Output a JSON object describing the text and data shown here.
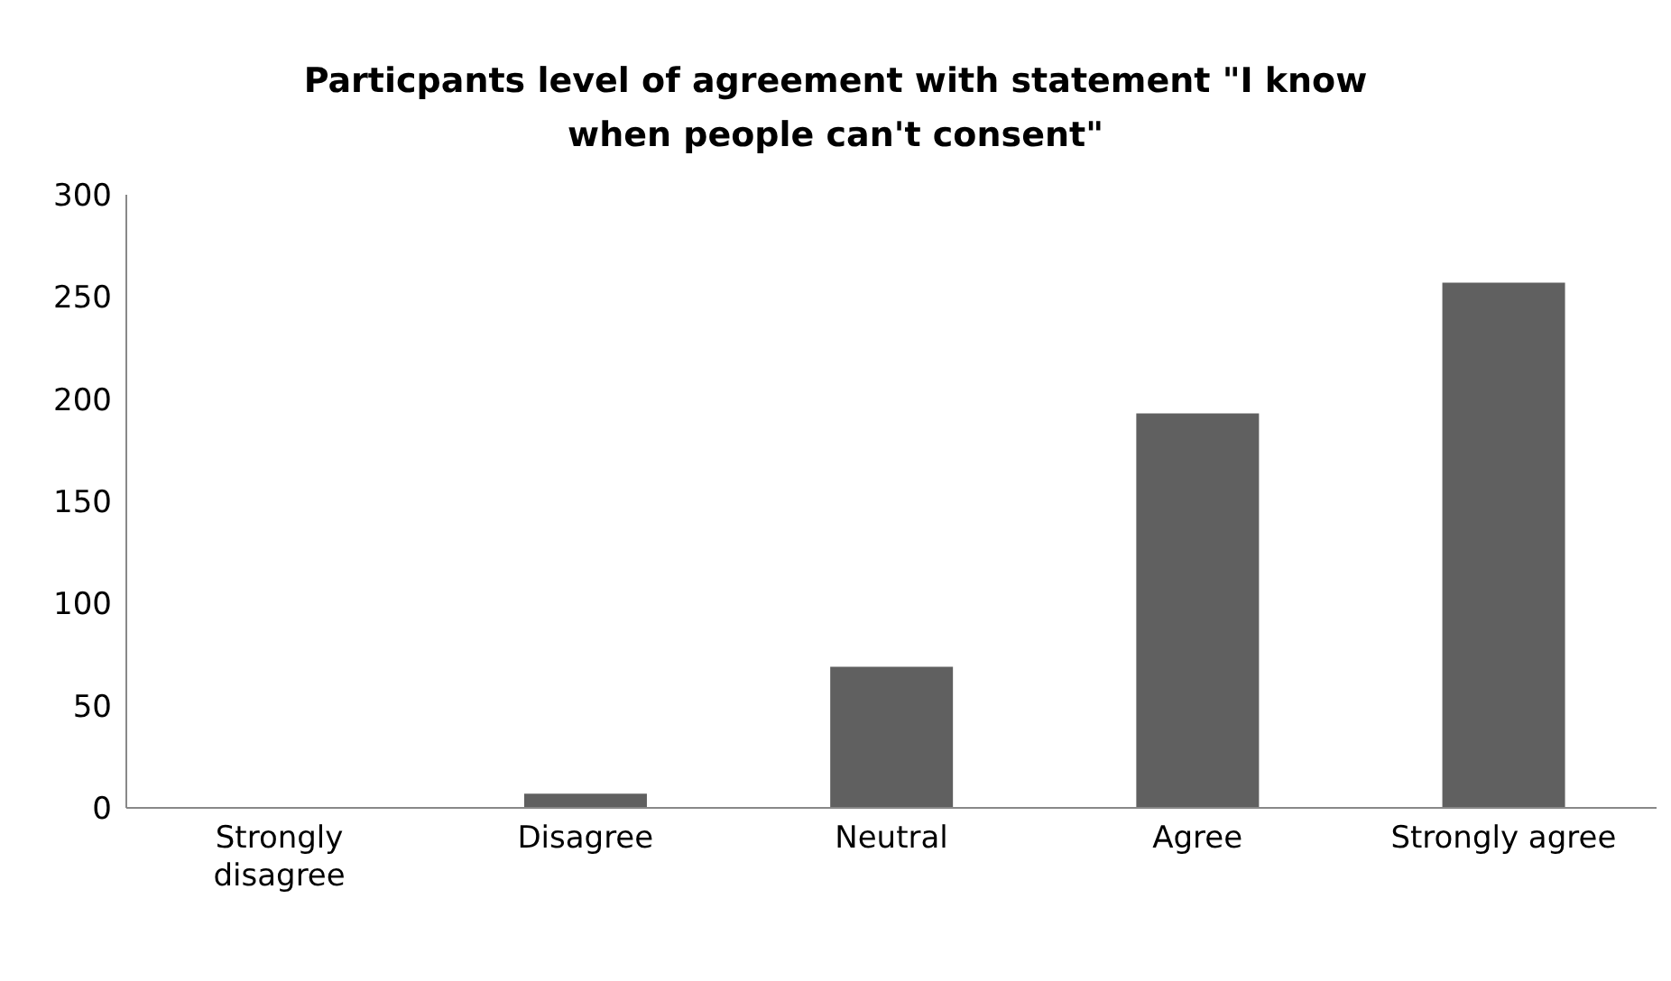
{
  "chart_data": {
    "type": "bar",
    "title": "Particpants level of agreement with statement \"I know when people can't consent\"",
    "categories": [
      "Strongly disagree",
      "Disagree",
      "Neutral",
      "Agree",
      "Strongly agree"
    ],
    "values": [
      0,
      7,
      69,
      193,
      257
    ],
    "color": "#606060",
    "ylim": [
      0,
      300
    ],
    "yticks": [
      0,
      50,
      100,
      150,
      200,
      250,
      300
    ],
    "grid": false
  }
}
